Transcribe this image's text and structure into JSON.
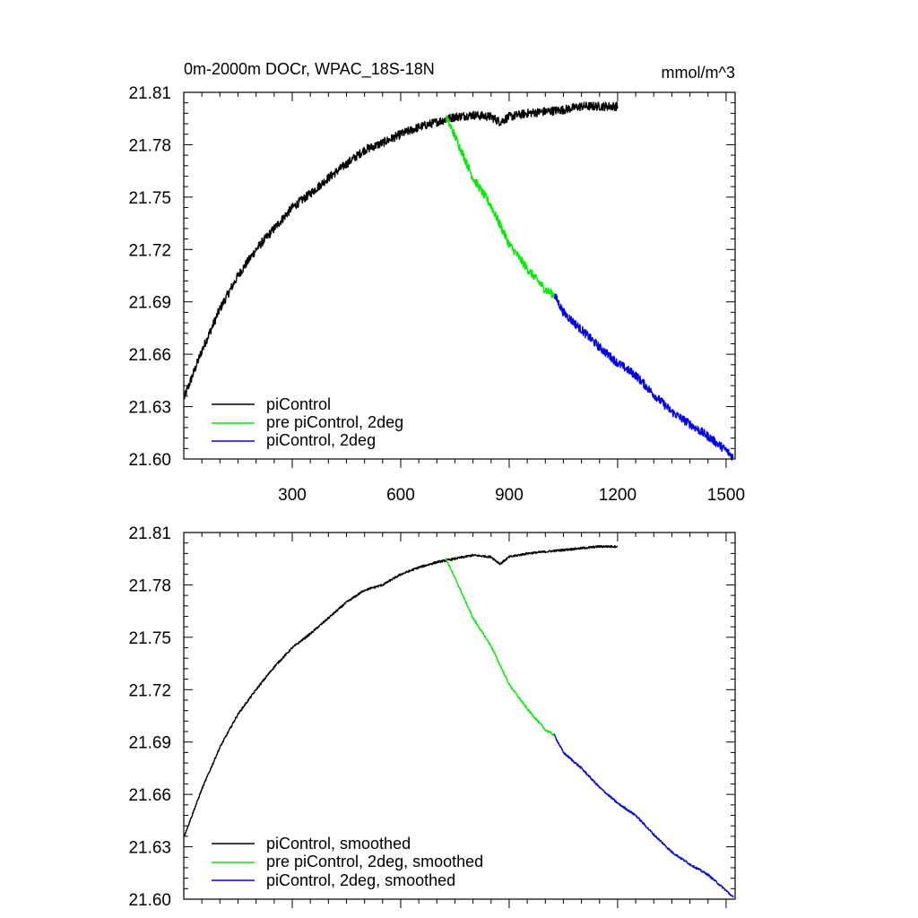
{
  "chart_data": [
    {
      "type": "line",
      "title": "0m-2000m DOCr, WPAC_18S-18N",
      "units": "mmol/m^3",
      "xlim": [
        0,
        1525
      ],
      "ylim": [
        21.6,
        21.81
      ],
      "xticks": [
        300,
        600,
        900,
        1200,
        1500
      ],
      "xtick_labels": [
        "300",
        "600",
        "900",
        "1200",
        "1500"
      ],
      "yticks": [
        21.6,
        21.63,
        21.66,
        21.69,
        21.72,
        21.75,
        21.78,
        21.81
      ],
      "ytick_labels": [
        "21.60",
        "21.63",
        "21.66",
        "21.69",
        "21.72",
        "21.75",
        "21.78",
        "21.81"
      ],
      "legend_position": "bottom-left",
      "series": [
        {
          "name": "piControl",
          "color": "#000000",
          "noise": 0.0025,
          "x": [
            1,
            50,
            100,
            150,
            200,
            250,
            300,
            350,
            400,
            450,
            500,
            550,
            600,
            650,
            700,
            750,
            800,
            850,
            875,
            900,
            950,
            1000,
            1050,
            1100,
            1150,
            1200
          ],
          "y": [
            21.635,
            21.662,
            21.686,
            21.705,
            21.72,
            21.732,
            21.744,
            21.752,
            21.761,
            21.769,
            21.777,
            21.781,
            21.786,
            21.79,
            21.793,
            21.796,
            21.797,
            21.796,
            21.793,
            21.796,
            21.798,
            21.799,
            21.8,
            21.802,
            21.802,
            21.802
          ]
        },
        {
          "name": "pre piControl, 2deg",
          "color": "#00ee00",
          "noise": 0.0025,
          "x": [
            725,
            750,
            800,
            850,
            900,
            950,
            1000,
            1025
          ],
          "y": [
            21.796,
            21.785,
            21.761,
            21.745,
            21.723,
            21.709,
            21.697,
            21.694
          ]
        },
        {
          "name": "piControl, 2deg",
          "color": "#0000ee",
          "noise": 0.0025,
          "x": [
            1025,
            1050,
            1100,
            1150,
            1200,
            1250,
            1300,
            1350,
            1400,
            1450,
            1500,
            1520
          ],
          "y": [
            21.694,
            21.684,
            21.674,
            21.664,
            21.655,
            21.648,
            21.637,
            21.627,
            21.62,
            21.613,
            21.605,
            21.601
          ]
        }
      ]
    },
    {
      "type": "line",
      "title": "",
      "xlim": [
        0,
        1525
      ],
      "ylim": [
        21.6,
        21.81
      ],
      "xticks": [
        300,
        600,
        900,
        1200,
        1500
      ],
      "xtick_labels": [],
      "yticks": [
        21.6,
        21.63,
        21.66,
        21.69,
        21.72,
        21.75,
        21.78,
        21.81
      ],
      "ytick_labels": [
        "21.60",
        "21.63",
        "21.66",
        "21.69",
        "21.72",
        "21.75",
        "21.78",
        "21.81"
      ],
      "legend_position": "bottom-left",
      "series": [
        {
          "name": "piControl, smoothed",
          "color": "#000000",
          "noise": 0.0006,
          "x": [
            1,
            50,
            100,
            150,
            200,
            250,
            300,
            350,
            400,
            450,
            500,
            550,
            600,
            650,
            700,
            750,
            800,
            850,
            875,
            900,
            950,
            1000,
            1050,
            1100,
            1150,
            1200
          ],
          "y": [
            21.636,
            21.663,
            21.687,
            21.706,
            21.72,
            21.733,
            21.744,
            21.752,
            21.761,
            21.77,
            21.777,
            21.78,
            21.786,
            21.79,
            21.793,
            21.795,
            21.797,
            21.796,
            21.792,
            21.796,
            21.798,
            21.799,
            21.8,
            21.801,
            21.802,
            21.802
          ]
        },
        {
          "name": "pre piControl, 2deg, smoothed",
          "color": "#00ee00",
          "noise": 0.0006,
          "x": [
            725,
            750,
            800,
            850,
            900,
            950,
            1000,
            1025
          ],
          "y": [
            21.795,
            21.784,
            21.761,
            21.745,
            21.723,
            21.709,
            21.697,
            21.694
          ]
        },
        {
          "name": "piControl, 2deg, smoothed",
          "color": "#0000ee",
          "noise": 0.0006,
          "x": [
            1025,
            1050,
            1100,
            1150,
            1200,
            1250,
            1300,
            1350,
            1400,
            1450,
            1500,
            1520
          ],
          "y": [
            21.694,
            21.684,
            21.675,
            21.664,
            21.655,
            21.648,
            21.637,
            21.627,
            21.62,
            21.614,
            21.605,
            21.601
          ]
        }
      ]
    }
  ]
}
